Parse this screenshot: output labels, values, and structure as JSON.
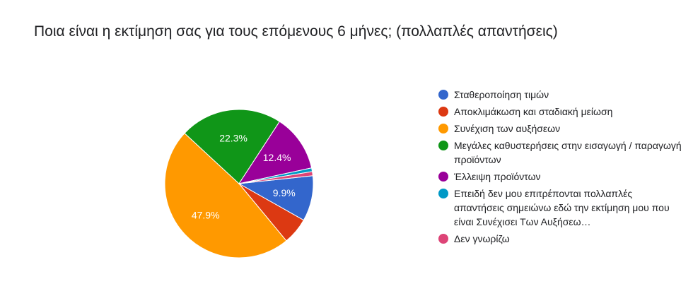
{
  "question": {
    "title": "Ποια είναι η εκτίμηση σας για τους επόμενους 6 μήνες; (πολλαπλές απαντήσεις)"
  },
  "chart_data": {
    "type": "pie",
    "title": "Ποια είναι η εκτίμηση σας για τους επόμενους 6 μήνες; (πολλαπλές απαντήσεις)",
    "legend_position": "right",
    "slices": [
      {
        "label": "Σταθεροποίηση τιμών",
        "value": 9.9,
        "color": "#3366cc",
        "shown_label": "9.9%"
      },
      {
        "label": "Αποκλιμάκωση και σταδιακή μείωση",
        "value": 5.8,
        "color": "#dc3912",
        "shown_label": ""
      },
      {
        "label": "Συνέχιση των αυξήσεων",
        "value": 47.9,
        "color": "#ff9900",
        "shown_label": "47.9%"
      },
      {
        "label": "Μεγάλες καθυστερήσεις στην εισαγωγή / παραγωγή προϊόντων",
        "value": 22.3,
        "color": "#109618",
        "shown_label": "22.3%"
      },
      {
        "label": "Έλλειψη προϊόντων",
        "value": 12.4,
        "color": "#990099",
        "shown_label": "12.4%"
      },
      {
        "label": "Επειδή δεν μου επιτρέπονται πολλαπλές απαντήσεις σημειώνω εδώ την εκτίμηση μου που είναι Συνέχισει Των Αυξήσεω…",
        "value": 0.8,
        "color": "#0099c6",
        "shown_label": ""
      },
      {
        "label": "Δεν γνωρίζω",
        "value": 0.9,
        "color": "#dd4477",
        "shown_label": ""
      }
    ]
  }
}
